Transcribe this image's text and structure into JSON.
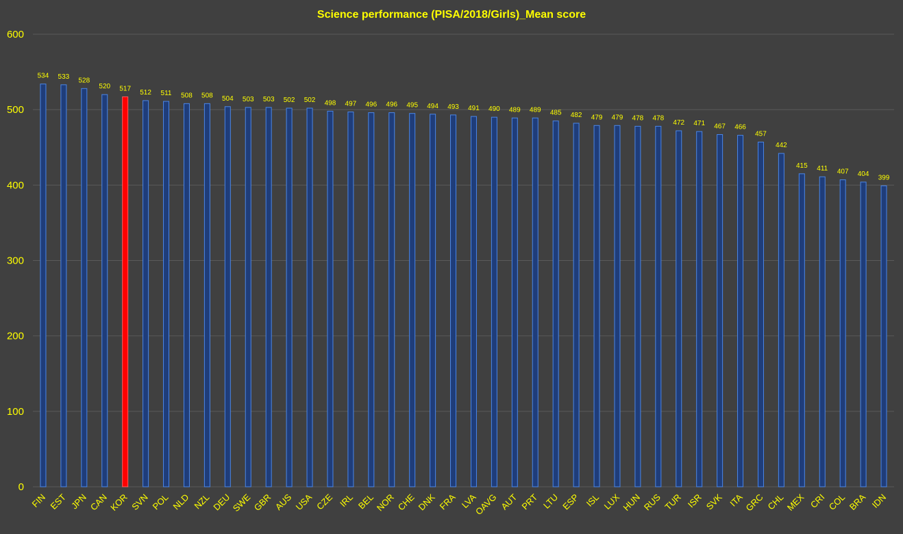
{
  "chart_data": {
    "type": "bar",
    "title": "Science performance (PISA/2018/Girls)_Mean score",
    "xlabel": "",
    "ylabel": "",
    "ylim": [
      0,
      600
    ],
    "yticks": [
      0,
      100,
      200,
      300,
      400,
      500,
      600
    ],
    "grid": true,
    "legend": "none",
    "categories": [
      "FIN",
      "EST",
      "JPN",
      "CAN",
      "KOR",
      "SVN",
      "POL",
      "NLD",
      "NZL",
      "DEU",
      "SWE",
      "GBR",
      "AUS",
      "USA",
      "CZE",
      "IRL",
      "BEL",
      "NOR",
      "CHE",
      "DNK",
      "FRA",
      "LVA",
      "OAVG",
      "AUT",
      "PRT",
      "LTU",
      "ESP",
      "ISL",
      "LUX",
      "HUN",
      "RUS",
      "TUR",
      "ISR",
      "SVK",
      "ITA",
      "GRC",
      "CHL",
      "MEX",
      "CRI",
      "COL",
      "BRA",
      "IDN"
    ],
    "values": [
      534,
      533,
      528,
      520,
      517,
      512,
      511,
      508,
      508,
      504,
      503,
      503,
      502,
      502,
      498,
      497,
      496,
      496,
      495,
      494,
      493,
      491,
      490,
      489,
      489,
      485,
      482,
      479,
      479,
      478,
      478,
      472,
      471,
      467,
      466,
      457,
      442,
      415,
      411,
      407,
      404,
      399
    ],
    "highlight": "KOR",
    "colors": {
      "background": "#404040",
      "bar_fill": "#1f3d7a",
      "bar_edge": "#4a86e8",
      "highlight_fill": "#ff0000",
      "highlight_edge": "#ff6060",
      "text": "#ffff00",
      "grid": "#5a5a5a"
    }
  }
}
